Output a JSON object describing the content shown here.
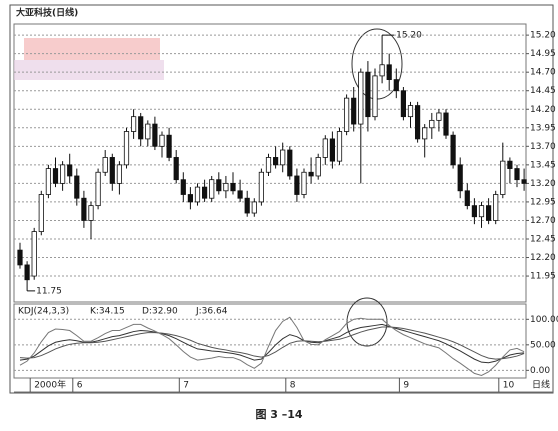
{
  "chart_data": [
    {
      "type": "candlestick",
      "title": "大亚科技(日线)",
      "open": [
        12.3,
        12.1,
        11.95,
        12.55,
        13.05,
        13.4,
        13.2,
        13.45,
        13.3,
        13.0,
        12.7,
        12.9,
        13.35,
        13.55,
        13.2,
        13.45,
        13.9,
        14.1,
        13.8,
        14.0,
        13.7,
        13.85,
        13.55,
        13.25,
        13.05,
        12.95,
        13.15,
        13.0,
        13.25,
        13.1,
        13.2,
        13.1,
        13.0,
        12.8,
        12.95,
        13.35,
        13.55,
        13.45,
        13.65,
        13.3,
        13.05,
        13.35,
        13.3,
        13.55,
        13.8,
        13.5,
        13.9,
        14.35,
        14.0,
        14.7,
        14.1,
        14.65,
        14.8,
        14.6,
        14.45,
        14.1,
        14.25,
        13.8,
        13.95,
        14.05,
        14.15,
        13.85,
        13.45,
        13.1,
        12.9,
        12.75,
        12.9,
        12.7,
        13.05,
        13.5,
        13.4,
        13.25
      ],
      "high": [
        12.4,
        12.15,
        12.6,
        13.1,
        13.45,
        13.55,
        13.5,
        13.6,
        13.4,
        13.1,
        12.95,
        13.4,
        13.65,
        13.6,
        13.5,
        13.95,
        14.2,
        14.15,
        14.05,
        14.1,
        13.9,
        13.95,
        13.65,
        13.35,
        13.15,
        13.2,
        13.25,
        13.3,
        13.35,
        13.3,
        13.35,
        13.25,
        13.1,
        13.0,
        13.4,
        13.6,
        13.7,
        13.75,
        13.7,
        13.4,
        13.4,
        13.55,
        13.6,
        13.85,
        13.9,
        13.95,
        14.4,
        14.5,
        14.75,
        14.85,
        14.75,
        15.2,
        14.95,
        14.75,
        14.5,
        14.3,
        14.3,
        14.0,
        14.15,
        14.2,
        14.2,
        13.9,
        13.55,
        13.2,
        13.0,
        12.95,
        13.0,
        13.1,
        13.75,
        13.55,
        13.45,
        13.4
      ],
      "low": [
        12.05,
        11.75,
        11.9,
        12.5,
        13.0,
        13.15,
        13.1,
        13.2,
        12.9,
        12.6,
        12.45,
        12.85,
        13.3,
        13.1,
        13.05,
        13.4,
        13.8,
        13.7,
        13.7,
        13.65,
        13.55,
        13.5,
        13.2,
        12.95,
        12.85,
        12.9,
        12.95,
        12.95,
        13.05,
        13.0,
        13.05,
        12.95,
        12.75,
        12.75,
        12.9,
        13.3,
        13.4,
        13.35,
        13.25,
        12.95,
        13.0,
        13.2,
        13.25,
        13.45,
        13.4,
        13.45,
        13.85,
        13.9,
        13.2,
        13.9,
        14.05,
        14.55,
        14.45,
        14.35,
        14.05,
        13.95,
        13.75,
        13.55,
        13.8,
        13.9,
        13.8,
        13.4,
        13.0,
        12.85,
        12.65,
        12.6,
        12.65,
        12.65,
        13.0,
        13.2,
        13.15,
        13.1
      ],
      "close": [
        12.1,
        11.9,
        12.55,
        13.05,
        13.4,
        13.2,
        13.45,
        13.3,
        13.0,
        12.7,
        12.9,
        13.35,
        13.55,
        13.2,
        13.45,
        13.9,
        14.1,
        13.8,
        14.0,
        13.7,
        13.85,
        13.55,
        13.25,
        13.05,
        12.95,
        13.15,
        13.0,
        13.25,
        13.1,
        13.2,
        13.1,
        13.0,
        12.8,
        12.95,
        13.35,
        13.55,
        13.45,
        13.65,
        13.3,
        13.05,
        13.35,
        13.3,
        13.55,
        13.8,
        13.5,
        13.9,
        14.35,
        14.0,
        14.7,
        14.1,
        14.65,
        14.8,
        14.6,
        14.45,
        14.1,
        14.25,
        13.8,
        13.95,
        14.05,
        14.15,
        13.85,
        13.45,
        13.1,
        12.9,
        12.75,
        12.9,
        12.7,
        13.05,
        13.5,
        13.4,
        13.25,
        13.2
      ],
      "up_color": "#ffffff",
      "down_color": "#111111",
      "ylim": [
        11.6,
        15.35
      ],
      "yticks": [
        {
          "value": 15.2,
          "label": "15.20"
        },
        14.95,
        {
          "value": 14.7,
          "label": "14.70"
        },
        14.45,
        {
          "value": 14.2,
          "label": "14.20"
        },
        13.95,
        {
          "value": 13.7,
          "label": "13.70"
        },
        13.45,
        {
          "value": 13.2,
          "label": "13.20"
        },
        12.95,
        {
          "value": 12.7,
          "label": "12.70"
        },
        12.45,
        {
          "value": 12.2,
          "label": "12.20"
        },
        11.95
      ],
      "grid": true,
      "annotations": [
        "15.20",
        "11.75"
      ]
    },
    {
      "type": "line",
      "title": "KDJ(24,3,3)",
      "readout": [
        "K:34.15",
        "D:32.90",
        "J:36.64"
      ],
      "categories": [
        null,
        null,
        "2000年",
        null,
        null,
        null,
        null,
        null,
        "6",
        null,
        null,
        null,
        null,
        null,
        null,
        null,
        null,
        null,
        null,
        null,
        null,
        null,
        null,
        "7",
        null,
        null,
        null,
        null,
        null,
        null,
        null,
        null,
        null,
        null,
        null,
        null,
        null,
        null,
        "8",
        null,
        null,
        null,
        null,
        null,
        null,
        null,
        null,
        null,
        null,
        null,
        null,
        null,
        null,
        null,
        "9",
        null,
        null,
        null,
        null,
        null,
        null,
        null,
        null,
        null,
        null,
        null,
        null,
        null,
        "10",
        null,
        null,
        null
      ],
      "period_label": "日线",
      "series": [
        {
          "name": "K",
          "color": "#333333",
          "values": [
            20,
            22,
            28,
            38,
            48,
            55,
            58,
            60,
            58,
            55,
            55,
            58,
            62,
            66,
            68,
            72,
            76,
            78,
            77,
            75,
            72,
            68,
            62,
            55,
            48,
            42,
            40,
            38,
            37,
            35,
            33,
            30,
            25,
            20,
            22,
            35,
            50,
            62,
            70,
            66,
            58,
            55,
            54,
            58,
            62,
            66,
            74,
            80,
            84,
            86,
            88,
            90,
            86,
            82,
            78,
            74,
            70,
            66,
            62,
            58,
            52,
            45,
            38,
            30,
            22,
            16,
            15,
            18,
            24,
            30,
            33,
            34.15
          ]
        },
        {
          "name": "D",
          "color": "#555555",
          "values": [
            25,
            24,
            25,
            29,
            35,
            42,
            47,
            51,
            53,
            54,
            54,
            55,
            57,
            60,
            63,
            66,
            69,
            72,
            74,
            74,
            73,
            71,
            68,
            64,
            59,
            53,
            49,
            45,
            42,
            40,
            37,
            35,
            32,
            28,
            26,
            29,
            36,
            45,
            53,
            57,
            58,
            57,
            56,
            57,
            59,
            61,
            65,
            70,
            75,
            79,
            82,
            85,
            85,
            84,
            82,
            79,
            76,
            73,
            69,
            65,
            61,
            56,
            50,
            43,
            36,
            29,
            24,
            22,
            23,
            25,
            28,
            32.9
          ]
        },
        {
          "name": "J",
          "color": "#777777",
          "values": [
            10,
            18,
            34,
            56,
            74,
            81,
            80,
            78,
            68,
            57,
            57,
            64,
            72,
            78,
            78,
            84,
            90,
            90,
            83,
            77,
            70,
            62,
            50,
            37,
            26,
            20,
            22,
            24,
            27,
            25,
            25,
            20,
            11,
            4,
            14,
            47,
            78,
            96,
            104,
            84,
            58,
            51,
            50,
            60,
            68,
            76,
            92,
            100,
            102,
            100,
            100,
            100,
            88,
            78,
            70,
            64,
            58,
            52,
            48,
            44,
            34,
            23,
            14,
            4,
            -6,
            -10,
            -3,
            10,
            26,
            40,
            43,
            36.64
          ]
        }
      ],
      "ylim": [
        -15,
        130
      ],
      "yticks": [
        {
          "value": 100,
          "label": "100.00"
        },
        {
          "value": 50,
          "label": "50.00"
        },
        {
          "value": 0,
          "label": "0.00"
        }
      ],
      "grid": true
    },
    {
      "type": "caption",
      "caption": "图 3 –14"
    }
  ]
}
